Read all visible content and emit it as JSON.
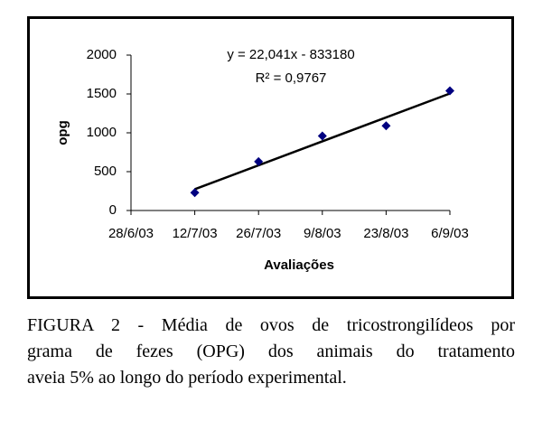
{
  "chart_data": {
    "type": "scatter",
    "equation": "y = 22,041x - 833180",
    "r_squared": "R² = 0,9767",
    "x_label": "Avaliações",
    "y_label": "opg",
    "categories": [
      "28/6/03",
      "12/7/03",
      "26/7/03",
      "9/8/03",
      "23/8/03",
      "6/9/03"
    ],
    "values": [
      null,
      230,
      630,
      960,
      1090,
      1540
    ],
    "color": "#000080",
    "trendline": true,
    "ylim": [
      0,
      2000
    ],
    "yticks": [
      0,
      500,
      1000,
      1500,
      2000
    ],
    "grid": false
  },
  "caption": {
    "lines": [
      "FIGURA 2 - Média de ovos de tricostrongilídeos por",
      "grama de fezes (OPG) dos animais do tratamento",
      "aveia 5% ao longo do período experimental."
    ]
  }
}
